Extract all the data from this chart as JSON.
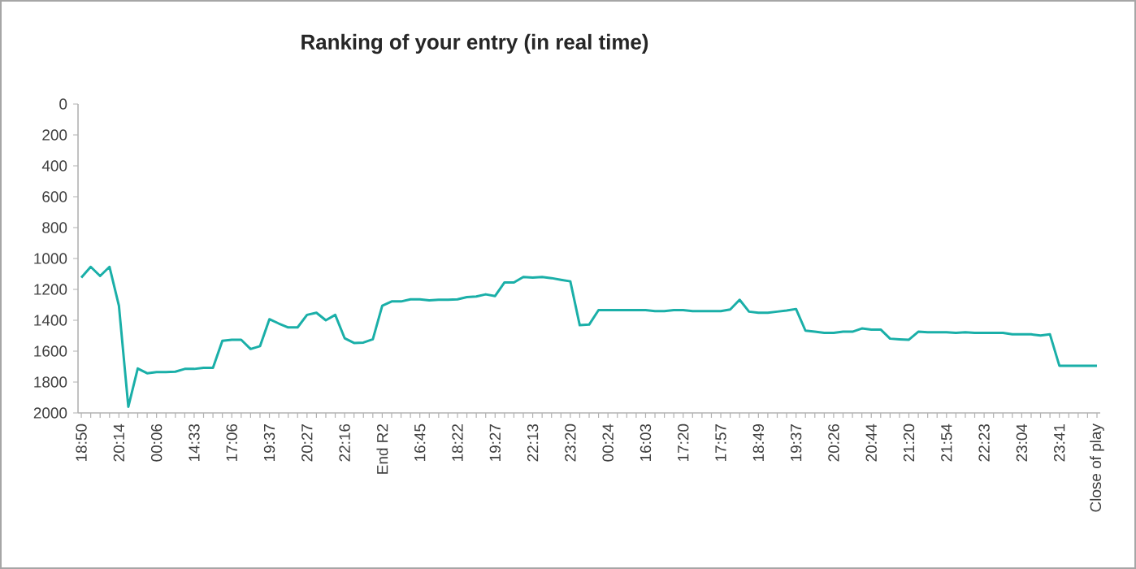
{
  "chart_data": {
    "type": "line",
    "title": "Ranking of your entry (in real time)",
    "categories": [
      "18:50",
      null,
      null,
      null,
      "20:14",
      null,
      null,
      null,
      "00:06",
      null,
      null,
      null,
      "14:33",
      null,
      null,
      null,
      "17:06",
      null,
      null,
      null,
      "19:37",
      null,
      null,
      null,
      "20:27",
      null,
      null,
      null,
      "22:16",
      null,
      null,
      null,
      "End R2",
      null,
      null,
      null,
      "16:45",
      null,
      null,
      null,
      "18:22",
      null,
      null,
      null,
      "19:27",
      null,
      null,
      null,
      "22:13",
      null,
      null,
      null,
      "23:20",
      null,
      null,
      null,
      "00:24",
      null,
      null,
      null,
      "16:03",
      null,
      null,
      null,
      "17:20",
      null,
      null,
      null,
      "17:57",
      null,
      null,
      null,
      "18:49",
      null,
      null,
      null,
      "19:37",
      null,
      null,
      null,
      "20:26",
      null,
      null,
      null,
      "20:44",
      null,
      null,
      null,
      "21:20",
      null,
      null,
      null,
      "21:54",
      null,
      null,
      null,
      "22:23",
      null,
      null,
      null,
      "23:04",
      null,
      null,
      null,
      "23:41",
      null,
      null,
      null,
      "Close of play"
    ],
    "series": [
      {
        "color": "#1aafa8",
        "values": [
          1124,
          1054,
          1113,
          1054,
          1306,
          1960,
          1712,
          1743,
          1736,
          1736,
          1733,
          1715,
          1715,
          1708,
          1708,
          1533,
          1526,
          1526,
          1586,
          1568,
          1393,
          1421,
          1446,
          1446,
          1365,
          1351,
          1400,
          1365,
          1516,
          1547,
          1544,
          1523,
          1306,
          1278,
          1278,
          1264,
          1264,
          1271,
          1267,
          1267,
          1264,
          1250,
          1246,
          1232,
          1243,
          1155,
          1155,
          1120,
          1124,
          1120,
          1127,
          1138,
          1148,
          1432,
          1428,
          1334,
          1334,
          1334,
          1334,
          1334,
          1334,
          1341,
          1341,
          1334,
          1334,
          1341,
          1341,
          1341,
          1341,
          1330,
          1267,
          1344,
          1351,
          1351,
          1344,
          1337,
          1327,
          1467,
          1474,
          1481,
          1481,
          1474,
          1474,
          1453,
          1460,
          1460,
          1519,
          1523,
          1526,
          1474,
          1477,
          1477,
          1477,
          1481,
          1477,
          1481,
          1481,
          1481,
          1481,
          1491,
          1491,
          1491,
          1498,
          1491,
          1694,
          1694,
          1694,
          1694,
          1694
        ]
      }
    ],
    "ylim": [
      2000,
      0
    ],
    "yticks": [
      0,
      200,
      400,
      600,
      800,
      1000,
      1200,
      1400,
      1600,
      1800,
      2000
    ],
    "grid": false,
    "legend": false,
    "marker": "none",
    "line_style": "solid"
  }
}
